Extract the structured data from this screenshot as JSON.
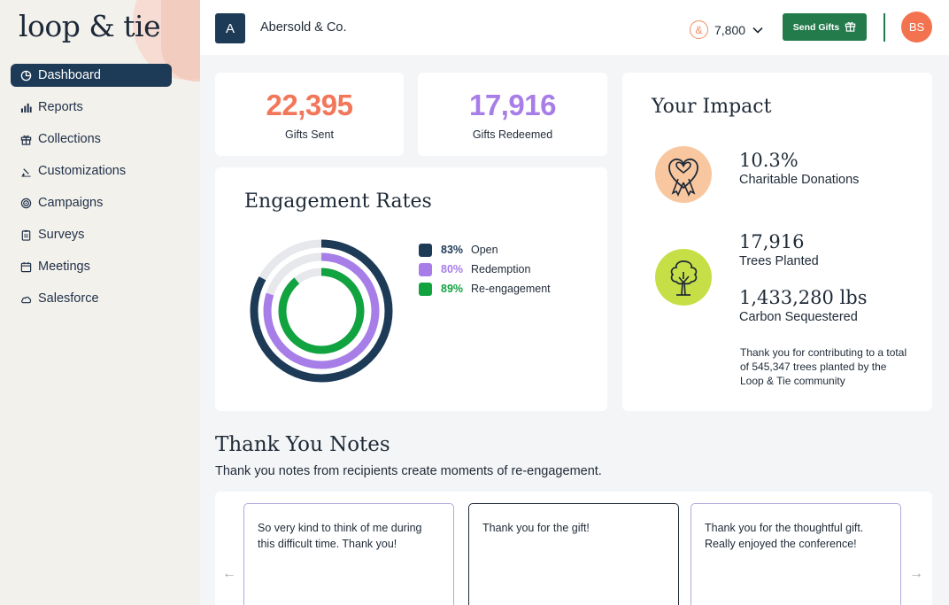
{
  "brand": {
    "logo_text": "loop & tie"
  },
  "sidebar": {
    "items": [
      {
        "label": "Dashboard",
        "icon": "pie-chart-icon",
        "active": true
      },
      {
        "label": "Reports",
        "icon": "bar-chart-icon"
      },
      {
        "label": "Collections",
        "icon": "gift-icon"
      },
      {
        "label": "Customizations",
        "icon": "brush-icon"
      },
      {
        "label": "Campaigns",
        "icon": "target-icon"
      },
      {
        "label": "Surveys",
        "icon": "clipboard-icon"
      },
      {
        "label": "Meetings",
        "icon": "calendar-icon"
      },
      {
        "label": "Salesforce",
        "icon": "cloud-icon"
      }
    ]
  },
  "header": {
    "company_initial": "A",
    "company_name": "Abersold & Co.",
    "points_symbol": "&",
    "points": "7,800",
    "send_gifts_label": "Send Gifts",
    "user_initials": "BS"
  },
  "stats": {
    "gifts_sent": {
      "value": "22,395",
      "label": "Gifts Sent",
      "color": "#f2775a"
    },
    "gifts_redeemed": {
      "value": "17,916",
      "label": "Gifts Redeemed",
      "color": "#a77ee8"
    }
  },
  "engagement": {
    "title": "Engagement Rates",
    "chart_data": {
      "type": "radial-bar",
      "series": [
        {
          "name": "Open",
          "value": 83,
          "label": "83%",
          "color": "#1d3a56"
        },
        {
          "name": "Redemption",
          "value": 80,
          "label": "80%",
          "color": "#a77ee8"
        },
        {
          "name": "Re-engagement",
          "value": 89,
          "label": "89%",
          "color": "#11a33f"
        }
      ],
      "ylim": [
        0,
        100
      ],
      "track_color": "#e6e8ec"
    }
  },
  "impact": {
    "title": "Your Impact",
    "donations": {
      "value": "10.3%",
      "label": "Charitable Donations",
      "icon": "ribbon-heart-icon",
      "color": "#f8c79f"
    },
    "trees": {
      "value": "17,916",
      "label": "Trees Planted",
      "icon": "tree-icon",
      "color": "#c7df47"
    },
    "carbon": {
      "value": "1,433,280 lbs",
      "label": "Carbon Sequestered"
    },
    "note": "Thank you for contributing to a total of 545,347 trees planted by the Loop & Tie community"
  },
  "thank_you": {
    "title": "Thank You Notes",
    "subtitle": "Thank you notes from recipients create moments of re-engagement.",
    "notes": [
      "So very kind to think of me during this difficult time. Thank you!",
      "Thank you for the gift!",
      "Thank you for the thoughtful gift. Really enjoyed the conference!"
    ],
    "prev_icon": "←",
    "next_icon": "→"
  }
}
